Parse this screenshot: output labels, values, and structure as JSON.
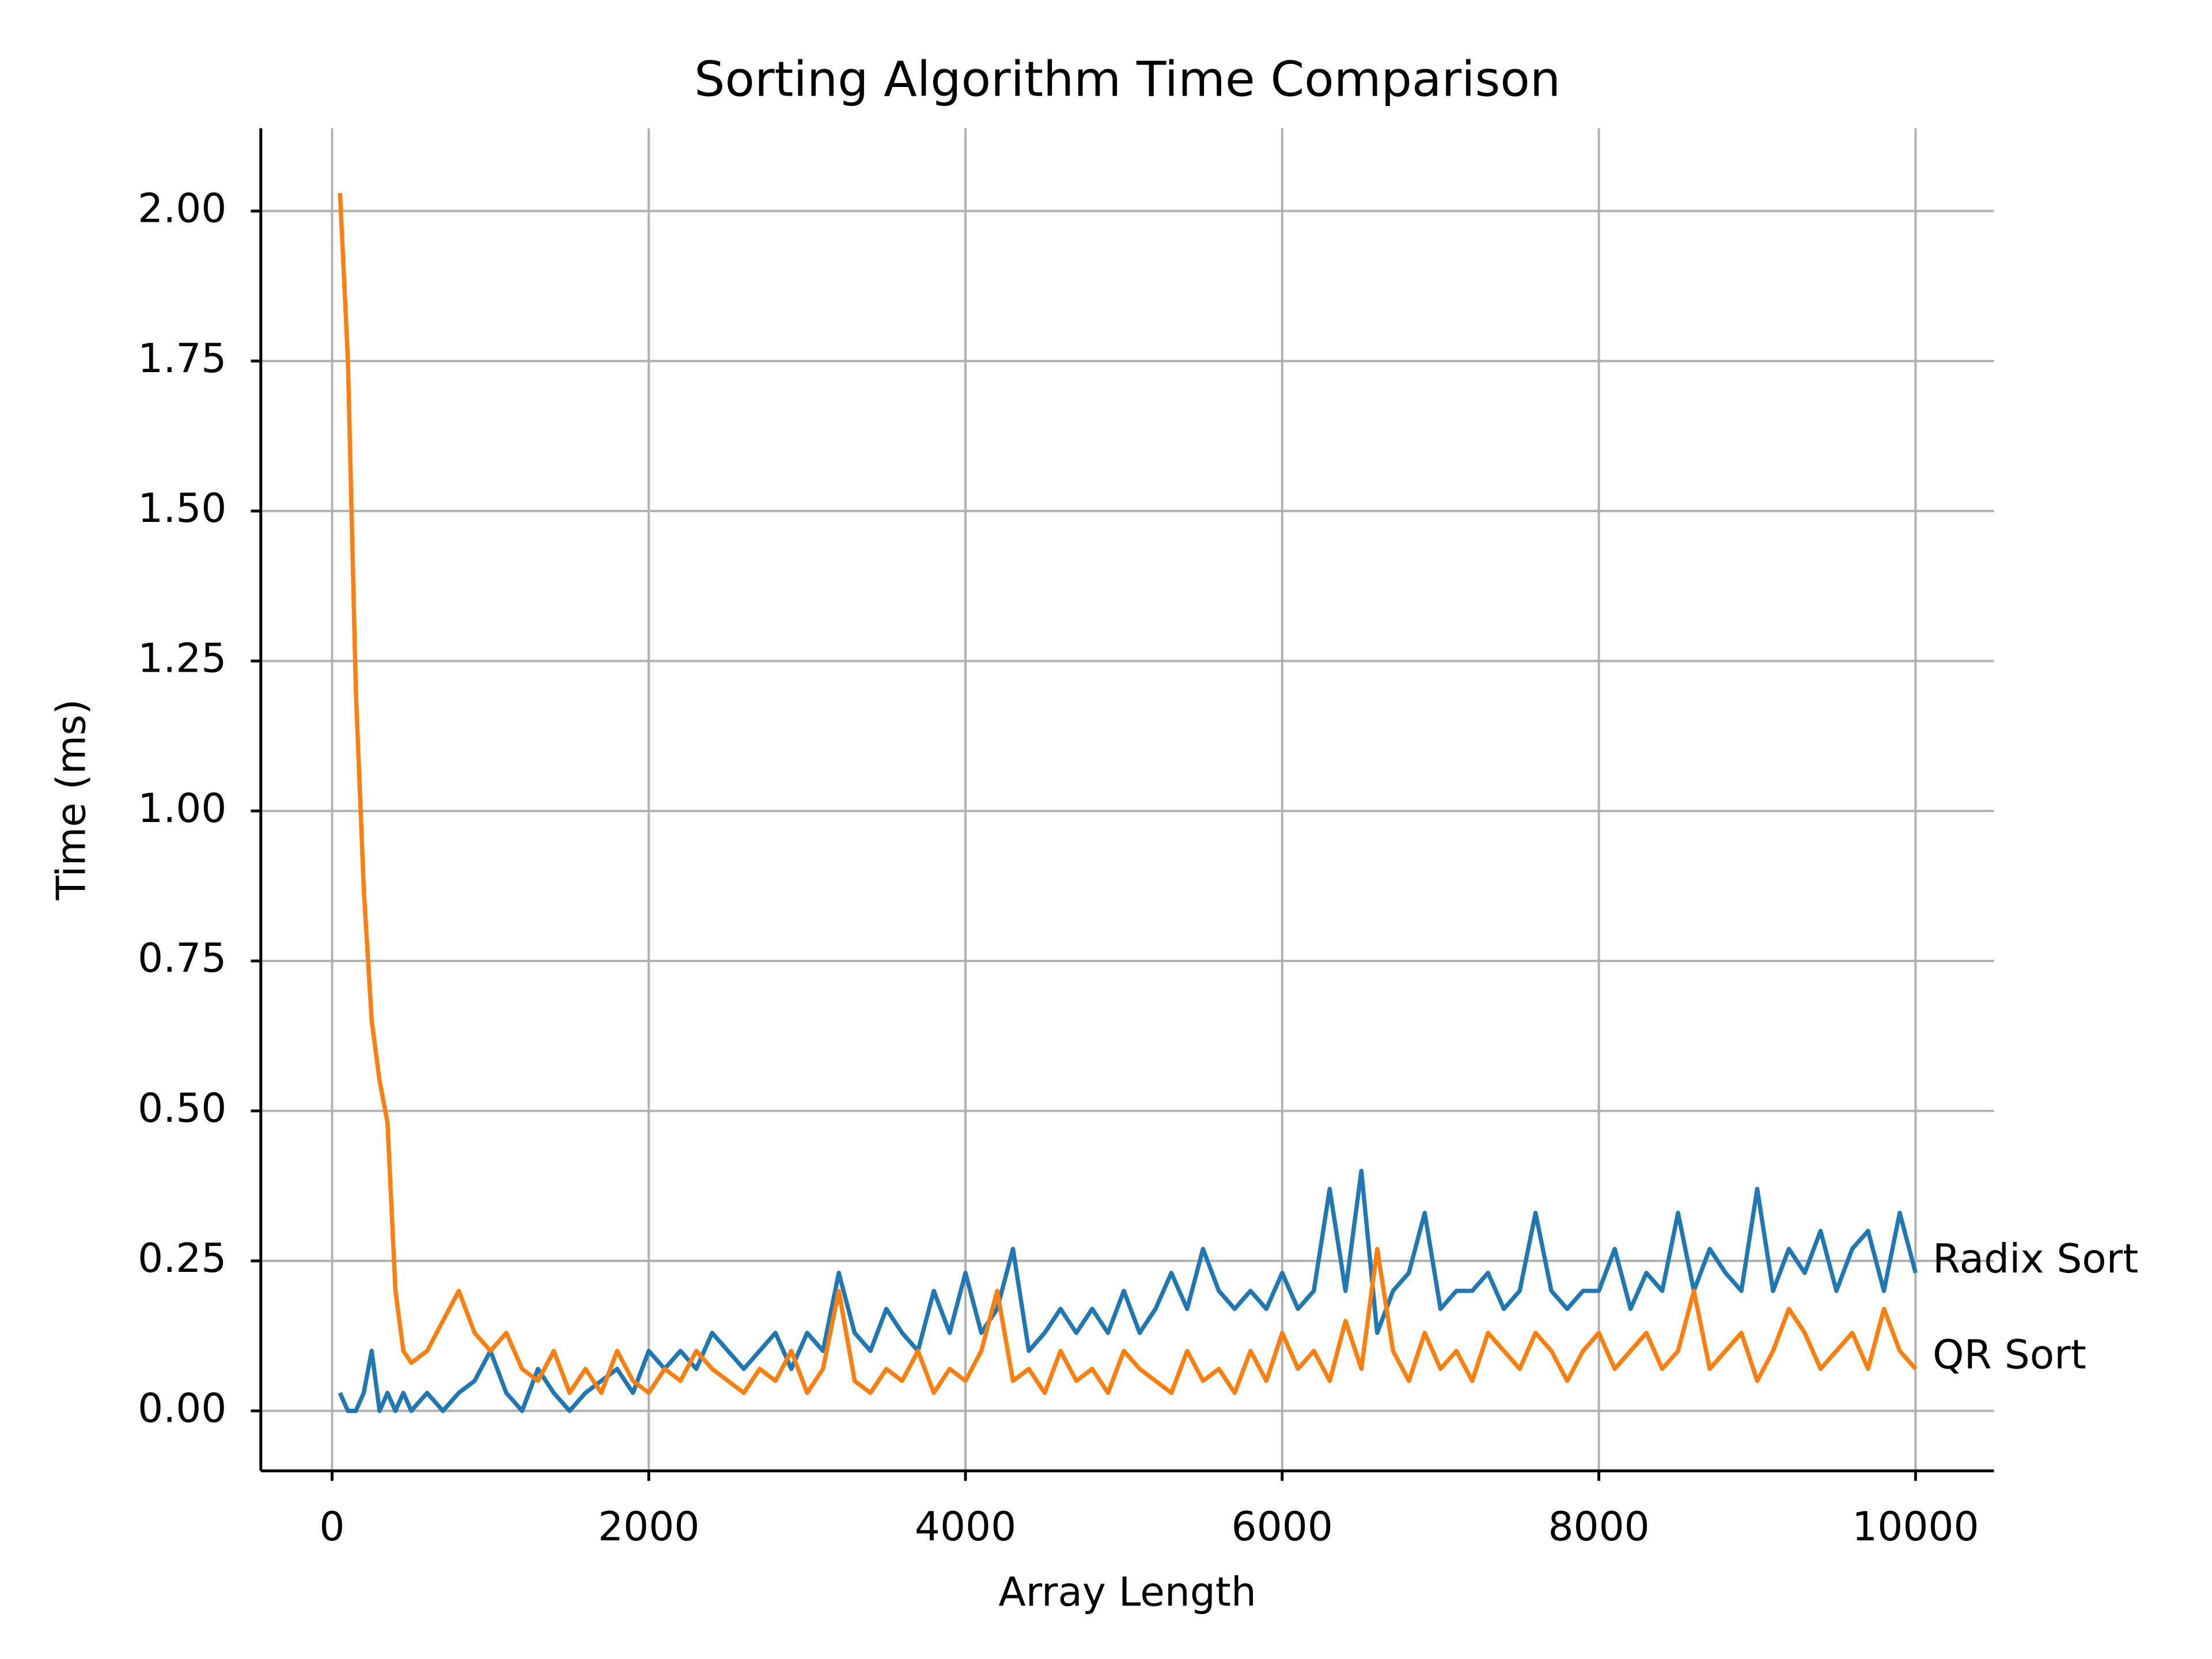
{
  "chart_data": {
    "type": "line",
    "title": "Sorting Algorithm Time Comparison",
    "x_label": "Array Length",
    "y_label": "Time (ms)",
    "x": [
      50,
      100,
      150,
      200,
      250,
      300,
      350,
      400,
      450,
      500,
      600,
      700,
      800,
      900,
      1000,
      1100,
      1200,
      1300,
      1400,
      1500,
      1600,
      1700,
      1800,
      1900,
      2000,
      2100,
      2200,
      2300,
      2400,
      2500,
      2600,
      2700,
      2800,
      2900,
      3000,
      3100,
      3200,
      3300,
      3400,
      3500,
      3600,
      3700,
      3800,
      3900,
      4000,
      4100,
      4200,
      4300,
      4400,
      4500,
      4600,
      4700,
      4800,
      4900,
      5000,
      5100,
      5200,
      5300,
      5400,
      5500,
      5600,
      5700,
      5800,
      5900,
      6000,
      6100,
      6200,
      6300,
      6400,
      6500,
      6600,
      6700,
      6800,
      6900,
      7000,
      7100,
      7200,
      7300,
      7400,
      7500,
      7600,
      7700,
      7800,
      7900,
      8000,
      8100,
      8200,
      8300,
      8400,
      8500,
      8600,
      8700,
      8800,
      8900,
      9000,
      9100,
      9200,
      9300,
      9400,
      9500,
      9600,
      9700,
      9800,
      9900,
      10000
    ],
    "series": [
      {
        "name": "Radix Sort",
        "color": "#1f77b4",
        "values": [
          0.03,
          0,
          0,
          0.03,
          0.1,
          0,
          0.03,
          0,
          0.03,
          0,
          0.03,
          0,
          0.03,
          0.05,
          0.1,
          0.03,
          0,
          0.07,
          0.03,
          0,
          0.03,
          0.05,
          0.07,
          0.03,
          0.1,
          0.07,
          0.1,
          0.07,
          0.13,
          0.1,
          0.07,
          0.1,
          0.13,
          0.07,
          0.13,
          0.1,
          0.23,
          0.13,
          0.1,
          0.17,
          0.13,
          0.1,
          0.2,
          0.13,
          0.23,
          0.13,
          0.17,
          0.27,
          0.1,
          0.13,
          0.17,
          0.13,
          0.17,
          0.13,
          0.2,
          0.13,
          0.17,
          0.23,
          0.17,
          0.27,
          0.2,
          0.17,
          0.2,
          0.17,
          0.23,
          0.17,
          0.2,
          0.37,
          0.2,
          0.4,
          0.13,
          0.2,
          0.23,
          0.33,
          0.17,
          0.2,
          0.2,
          0.23,
          0.17,
          0.2,
          0.33,
          0.2,
          0.17,
          0.2,
          0.2,
          0.27,
          0.17,
          0.23,
          0.2,
          0.33,
          0.2,
          0.27,
          0.23,
          0.2,
          0.37,
          0.2,
          0.27,
          0.23,
          0.3,
          0.2,
          0.27,
          0.3,
          0.2,
          0.33,
          0.23
        ]
      },
      {
        "name": "QR Sort",
        "color": "#ff7f0e",
        "values": [
          2.03,
          1.75,
          1.2,
          0.87,
          0.65,
          0.55,
          0.48,
          0.2,
          0.1,
          0.08,
          0.1,
          0.15,
          0.2,
          0.13,
          0.1,
          0.13,
          0.07,
          0.05,
          0.1,
          0.03,
          0.07,
          0.03,
          0.1,
          0.05,
          0.03,
          0.07,
          0.05,
          0.1,
          0.07,
          0.05,
          0.03,
          0.07,
          0.05,
          0.1,
          0.03,
          0.07,
          0.2,
          0.05,
          0.03,
          0.07,
          0.05,
          0.1,
          0.03,
          0.07,
          0.05,
          0.1,
          0.2,
          0.05,
          0.07,
          0.03,
          0.1,
          0.05,
          0.07,
          0.03,
          0.1,
          0.07,
          0.05,
          0.03,
          0.1,
          0.05,
          0.07,
          0.03,
          0.1,
          0.05,
          0.13,
          0.07,
          0.1,
          0.05,
          0.15,
          0.07,
          0.27,
          0.1,
          0.05,
          0.13,
          0.07,
          0.1,
          0.05,
          0.13,
          0.1,
          0.07,
          0.13,
          0.1,
          0.05,
          0.1,
          0.13,
          0.07,
          0.1,
          0.13,
          0.07,
          0.1,
          0.2,
          0.07,
          0.1,
          0.13,
          0.05,
          0.1,
          0.17,
          0.13,
          0.07,
          0.1,
          0.13,
          0.07,
          0.17,
          0.1,
          0.07
        ]
      }
    ],
    "xlim": [
      -450,
      10495
    ],
    "xticks": [
      0,
      2000,
      4000,
      6000,
      8000,
      10000
    ],
    "ylim": [
      -0.1,
      2.138
    ],
    "yticks": [
      {
        "value": 0,
        "label": "0.00"
      },
      {
        "value": 0.25,
        "label": "0.25"
      },
      {
        "value": 0.5,
        "label": "0.50"
      },
      {
        "value": 0.75,
        "label": "0.75"
      },
      {
        "value": 1,
        "label": "1.00"
      },
      {
        "value": 1.25,
        "label": "1.25"
      },
      {
        "value": 1.5,
        "label": "1.50"
      },
      {
        "value": 1.75,
        "label": "1.75"
      },
      {
        "value": 2,
        "label": "2.00"
      }
    ],
    "grid": true
  }
}
